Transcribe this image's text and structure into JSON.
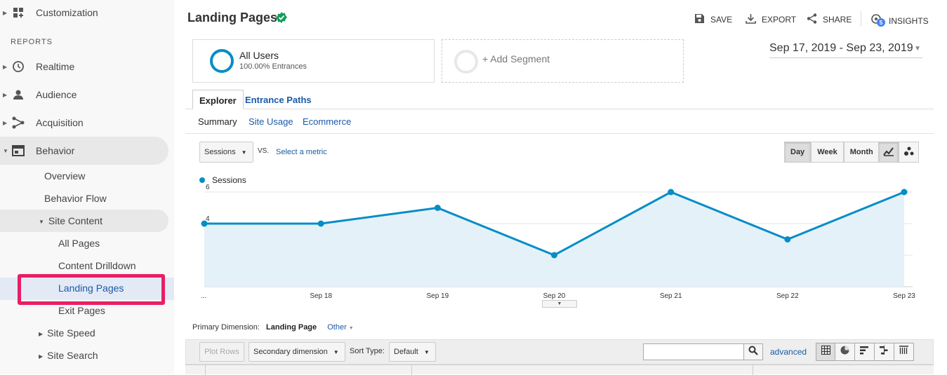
{
  "sidebar": {
    "customization_label": "Customization",
    "reports_label": "REPORTS",
    "items": [
      {
        "label": "Realtime"
      },
      {
        "label": "Audience"
      },
      {
        "label": "Acquisition"
      },
      {
        "label": "Behavior"
      }
    ],
    "behavior_sub": {
      "overview": "Overview",
      "behavior_flow": "Behavior Flow",
      "site_content": "Site Content",
      "all_pages": "All Pages",
      "content_drilldown": "Content Drilldown",
      "landing_pages": "Landing Pages",
      "exit_pages": "Exit Pages",
      "site_speed": "Site Speed",
      "site_search": "Site Search"
    }
  },
  "header": {
    "title": "Landing Pages",
    "save": "SAVE",
    "export": "EXPORT",
    "share": "SHARE",
    "insights": "INSIGHTS",
    "insights_badge": "5"
  },
  "segments": {
    "all_users": "All Users",
    "entrances": "100.00% Entrances",
    "add_segment": "+ Add Segment"
  },
  "date_range": "Sep 17, 2019 - Sep 23, 2019",
  "tabs": {
    "explorer": "Explorer",
    "entrance_paths": "Entrance Paths"
  },
  "subtabs": {
    "summary": "Summary",
    "site_usage": "Site Usage",
    "ecommerce": "Ecommerce"
  },
  "chart_controls": {
    "metric": "Sessions",
    "vs": "VS.",
    "select_metric": "Select a metric",
    "day": "Day",
    "week": "Week",
    "month": "Month"
  },
  "chart_data": {
    "type": "area",
    "categories": [
      "...",
      "Sep 18",
      "Sep 19",
      "Sep 20",
      "Sep 21",
      "Sep 22",
      "Sep 23"
    ],
    "series": [
      {
        "name": "Sessions",
        "values": [
          4,
          4,
          5,
          2,
          6,
          3,
          6
        ]
      }
    ],
    "yticks": [
      "2",
      "4",
      "6"
    ],
    "ylim": [
      0,
      6
    ],
    "color": "#058dc7"
  },
  "dimension": {
    "label": "Primary Dimension:",
    "value": "Landing Page",
    "other": "Other"
  },
  "toolbar": {
    "plot_rows": "Plot Rows",
    "secondary_dimension": "Secondary dimension",
    "sort_type_label": "Sort Type:",
    "sort_default": "Default",
    "search_placeholder": "",
    "advanced": "advanced"
  }
}
